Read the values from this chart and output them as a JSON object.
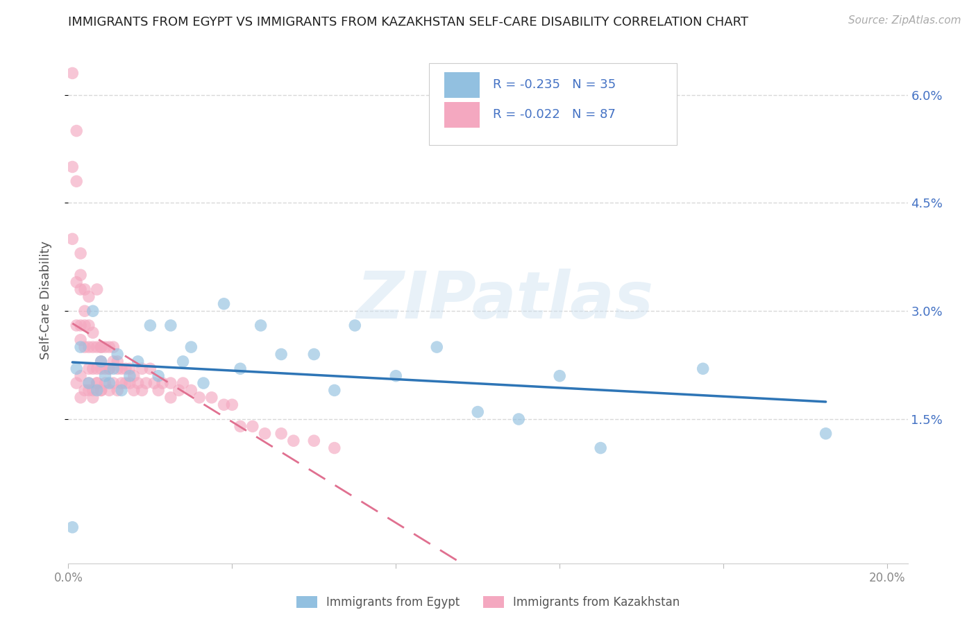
{
  "title": "IMMIGRANTS FROM EGYPT VS IMMIGRANTS FROM KAZAKHSTAN SELF-CARE DISABILITY CORRELATION CHART",
  "source": "Source: ZipAtlas.com",
  "ylabel": "Self-Care Disability",
  "xlim": [
    0.0,
    0.205
  ],
  "ylim": [
    -0.005,
    0.068
  ],
  "yticks": [
    0.015,
    0.03,
    0.045,
    0.06
  ],
  "ytick_labels": [
    "1.5%",
    "3.0%",
    "4.5%",
    "6.0%"
  ],
  "xtick_positions": [
    0.0,
    0.04,
    0.08,
    0.12,
    0.16,
    0.2
  ],
  "xtick_labels": [
    "0.0%",
    "",
    "",
    "",
    "",
    "20.0%"
  ],
  "right_ytick_color": "#4472C4",
  "watermark_text": "ZIPatlas",
  "legend_egypt_R": "-0.235",
  "legend_egypt_N": "35",
  "legend_kazakh_R": "-0.022",
  "legend_kazakh_N": "87",
  "egypt_color": "#92C0E0",
  "kazakh_color": "#F4A8C0",
  "egypt_line_color": "#2E75B6",
  "kazakh_line_color": "#E07090",
  "grid_color": "#D8D8D8",
  "background": "#ffffff",
  "legend_text_color": "#4472C4",
  "egypt_x": [
    0.001,
    0.002,
    0.003,
    0.005,
    0.006,
    0.007,
    0.008,
    0.009,
    0.01,
    0.011,
    0.012,
    0.013,
    0.015,
    0.017,
    0.02,
    0.022,
    0.025,
    0.028,
    0.03,
    0.033,
    0.038,
    0.042,
    0.047,
    0.052,
    0.06,
    0.065,
    0.07,
    0.08,
    0.09,
    0.1,
    0.11,
    0.13,
    0.155,
    0.185,
    0.12
  ],
  "egypt_y": [
    0.0,
    0.022,
    0.025,
    0.02,
    0.03,
    0.019,
    0.023,
    0.021,
    0.02,
    0.022,
    0.024,
    0.019,
    0.021,
    0.023,
    0.028,
    0.021,
    0.028,
    0.023,
    0.025,
    0.02,
    0.031,
    0.022,
    0.028,
    0.024,
    0.024,
    0.019,
    0.028,
    0.021,
    0.025,
    0.016,
    0.015,
    0.011,
    0.022,
    0.013,
    0.021
  ],
  "kazakh_x": [
    0.001,
    0.001,
    0.001,
    0.002,
    0.002,
    0.002,
    0.002,
    0.003,
    0.003,
    0.003,
    0.003,
    0.003,
    0.004,
    0.004,
    0.004,
    0.004,
    0.005,
    0.005,
    0.005,
    0.005,
    0.005,
    0.006,
    0.006,
    0.006,
    0.006,
    0.007,
    0.007,
    0.007,
    0.007,
    0.008,
    0.008,
    0.008,
    0.008,
    0.008,
    0.009,
    0.009,
    0.009,
    0.01,
    0.01,
    0.01,
    0.01,
    0.011,
    0.011,
    0.011,
    0.012,
    0.012,
    0.012,
    0.013,
    0.013,
    0.014,
    0.014,
    0.015,
    0.015,
    0.016,
    0.016,
    0.017,
    0.018,
    0.018,
    0.019,
    0.02,
    0.021,
    0.022,
    0.023,
    0.025,
    0.025,
    0.027,
    0.028,
    0.03,
    0.032,
    0.035,
    0.038,
    0.04,
    0.042,
    0.045,
    0.048,
    0.052,
    0.055,
    0.06,
    0.065,
    0.003,
    0.004,
    0.005,
    0.006,
    0.007,
    0.008,
    0.002,
    0.003
  ],
  "kazakh_y": [
    0.063,
    0.05,
    0.04,
    0.055,
    0.048,
    0.034,
    0.028,
    0.038,
    0.033,
    0.028,
    0.026,
    0.035,
    0.033,
    0.028,
    0.025,
    0.03,
    0.032,
    0.028,
    0.022,
    0.025,
    0.019,
    0.027,
    0.025,
    0.022,
    0.019,
    0.025,
    0.022,
    0.02,
    0.033,
    0.025,
    0.022,
    0.025,
    0.019,
    0.023,
    0.022,
    0.025,
    0.02,
    0.022,
    0.025,
    0.019,
    0.022,
    0.025,
    0.02,
    0.023,
    0.022,
    0.019,
    0.023,
    0.022,
    0.02,
    0.022,
    0.02,
    0.02,
    0.022,
    0.021,
    0.019,
    0.02,
    0.022,
    0.019,
    0.02,
    0.022,
    0.02,
    0.019,
    0.02,
    0.02,
    0.018,
    0.019,
    0.02,
    0.019,
    0.018,
    0.018,
    0.017,
    0.017,
    0.014,
    0.014,
    0.013,
    0.013,
    0.012,
    0.012,
    0.011,
    0.021,
    0.019,
    0.02,
    0.018,
    0.02,
    0.019,
    0.02,
    0.018
  ]
}
